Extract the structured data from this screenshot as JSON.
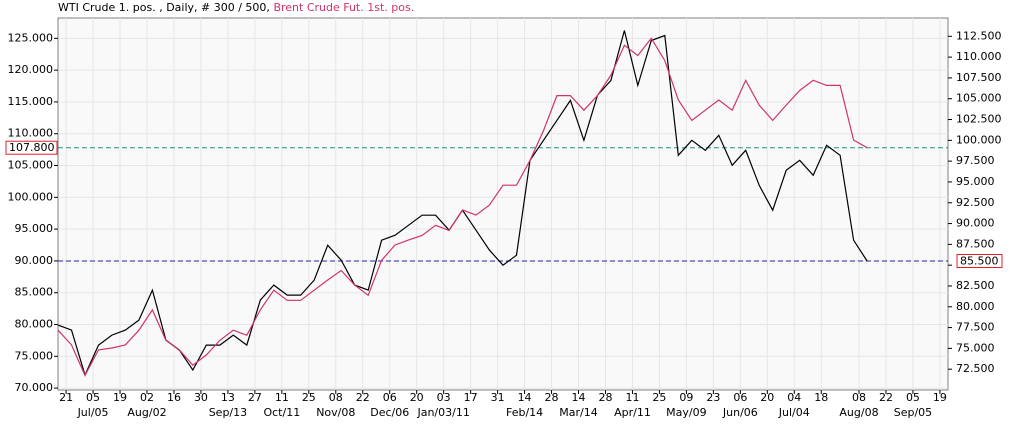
{
  "chart_data": {
    "type": "line",
    "subtitle": ", Daily, # 300 / 500,",
    "x": [
      0,
      5,
      10,
      15,
      20,
      25,
      30,
      35,
      40,
      45,
      50,
      55,
      60,
      65,
      70,
      75,
      80,
      85,
      90,
      95,
      100,
      105,
      110,
      115,
      120,
      125,
      130,
      135,
      140,
      145,
      150,
      155,
      160,
      165,
      170,
      175,
      180,
      185,
      190,
      195,
      200,
      205,
      210,
      215,
      220,
      225,
      230,
      235,
      240,
      245,
      250,
      255,
      260,
      265,
      270,
      275,
      280,
      285,
      290,
      295,
      300
    ],
    "xlim": [
      0,
      330
    ],
    "xticks": [
      {
        "value": 3,
        "label": "21"
      },
      {
        "value": 13,
        "label": "05"
      },
      {
        "value": 23,
        "label": "19"
      },
      {
        "value": 33,
        "label": "02"
      },
      {
        "value": 43,
        "label": "16"
      },
      {
        "value": 53,
        "label": "30"
      },
      {
        "value": 63,
        "label": "13"
      },
      {
        "value": 73,
        "label": "27"
      },
      {
        "value": 83,
        "label": "11"
      },
      {
        "value": 93,
        "label": "25"
      },
      {
        "value": 103,
        "label": "08"
      },
      {
        "value": 113,
        "label": "22"
      },
      {
        "value": 123,
        "label": "06"
      },
      {
        "value": 133,
        "label": "20"
      },
      {
        "value": 143,
        "label": "03"
      },
      {
        "value": 153,
        "label": "17"
      },
      {
        "value": 163,
        "label": "31"
      },
      {
        "value": 173,
        "label": "14"
      },
      {
        "value": 183,
        "label": "28"
      },
      {
        "value": 193,
        "label": "14"
      },
      {
        "value": 203,
        "label": "28"
      },
      {
        "value": 213,
        "label": "11"
      },
      {
        "value": 223,
        "label": "25"
      },
      {
        "value": 233,
        "label": "09"
      },
      {
        "value": 243,
        "label": "23"
      },
      {
        "value": 253,
        "label": "06"
      },
      {
        "value": 263,
        "label": "20"
      },
      {
        "value": 273,
        "label": "04"
      },
      {
        "value": 283,
        "label": "18"
      },
      {
        "value": 297,
        "label": "08"
      },
      {
        "value": 307,
        "label": "22"
      },
      {
        "value": 317,
        "label": "05"
      },
      {
        "value": 327,
        "label": "19"
      }
    ],
    "xticks2": [
      {
        "value": 13,
        "label": "Jul/05"
      },
      {
        "value": 33,
        "label": "Aug/02"
      },
      {
        "value": 63,
        "label": "Sep/13"
      },
      {
        "value": 83,
        "label": "Oct/11"
      },
      {
        "value": 103,
        "label": "Nov/08"
      },
      {
        "value": 123,
        "label": "Dec/06"
      },
      {
        "value": 143,
        "label": "Jan/03/11"
      },
      {
        "value": 173,
        "label": "Feb/14"
      },
      {
        "value": 193,
        "label": "Mar/14"
      },
      {
        "value": 213,
        "label": "Apr/11"
      },
      {
        "value": 233,
        "label": "May/09"
      },
      {
        "value": 253,
        "label": "Jun/06"
      },
      {
        "value": 273,
        "label": "Jul/04"
      },
      {
        "value": 297,
        "label": "Aug/08"
      },
      {
        "value": 317,
        "label": "Sep/05"
      }
    ],
    "ylim": [
      69.7,
      128.2
    ],
    "yticks": [
      {
        "value": 70,
        "label": "70.000"
      },
      {
        "value": 75,
        "label": "75.000"
      },
      {
        "value": 80,
        "label": "80.000"
      },
      {
        "value": 85,
        "label": "85.000"
      },
      {
        "value": 90,
        "label": "90.000"
      },
      {
        "value": 95,
        "label": "95.000"
      },
      {
        "value": 100,
        "label": "100.000"
      },
      {
        "value": 105,
        "label": "105.000"
      },
      {
        "value": 110,
        "label": "110.000"
      },
      {
        "value": 115,
        "label": "115.000"
      },
      {
        "value": 120,
        "label": "120.000"
      },
      {
        "value": 125,
        "label": "125.000"
      }
    ],
    "y2lim": [
      70,
      114.7
    ],
    "y2ticks": [
      {
        "value": 72.5,
        "label": "72.500"
      },
      {
        "value": 75,
        "label": "75.000"
      },
      {
        "value": 77.5,
        "label": "77.500"
      },
      {
        "value": 80,
        "label": "80.000"
      },
      {
        "value": 82.5,
        "label": "82.500"
      },
      {
        "value": 85,
        "label": "85.000"
      },
      {
        "value": 87.5,
        "label": "87.500"
      },
      {
        "value": 90,
        "label": "90.000"
      },
      {
        "value": 92.5,
        "label": "92.500"
      },
      {
        "value": 95,
        "label": "95.000"
      },
      {
        "value": 97.5,
        "label": "97.500"
      },
      {
        "value": 100,
        "label": "100.000"
      },
      {
        "value": 102.5,
        "label": "102.500"
      },
      {
        "value": 105,
        "label": "105.000"
      },
      {
        "value": 107.5,
        "label": "107.500"
      },
      {
        "value": 110,
        "label": "110.000"
      },
      {
        "value": 112.5,
        "label": "112.500"
      }
    ],
    "grid": true,
    "series": [
      {
        "name": "WTI Crude 1. pos.",
        "color": "#000000",
        "axis": "y2",
        "values": [
          77.8,
          77.2,
          71.8,
          75.4,
          76.6,
          77.2,
          78.4,
          82.0,
          76.0,
          74.8,
          72.4,
          75.4,
          75.4,
          76.6,
          75.4,
          80.8,
          82.6,
          81.4,
          81.4,
          83.2,
          87.4,
          85.6,
          82.6,
          82.0,
          88.0,
          88.6,
          89.8,
          91.0,
          91.0,
          89.2,
          91.6,
          89.2,
          86.8,
          85.0,
          86.2,
          97.6,
          100.0,
          102.4,
          104.8,
          100.0,
          105.4,
          107.2,
          113.2,
          106.6,
          112.0,
          112.6,
          98.2,
          100.0,
          98.8,
          100.6,
          97.0,
          98.8,
          94.6,
          91.6,
          96.4,
          97.6,
          95.8,
          99.4,
          98.2,
          88.0,
          85.5
        ]
      },
      {
        "name": "Brent Crude Fut. 1st. pos.",
        "color": "#d0336a",
        "values": [
          79.1,
          76.8,
          72.0,
          76.0,
          76.3,
          76.8,
          79.1,
          82.3,
          77.5,
          76.0,
          73.6,
          75.2,
          77.5,
          79.1,
          78.3,
          82.3,
          85.4,
          83.8,
          83.8,
          85.4,
          87.0,
          88.5,
          86.2,
          84.6,
          90.1,
          92.5,
          93.3,
          94.0,
          95.6,
          94.8,
          98.0,
          97.2,
          98.8,
          101.9,
          101.9,
          105.8,
          110.5,
          116.0,
          116.0,
          113.7,
          116.0,
          119.2,
          123.9,
          122.3,
          125.0,
          121.5,
          115.3,
          112.1,
          113.7,
          115.3,
          113.7,
          118.4,
          114.5,
          112.1,
          114.5,
          116.8,
          118.4,
          117.6,
          117.6,
          109.0,
          107.8
        ]
      }
    ],
    "reference_lines": [
      {
        "value": 107.8,
        "label": "107.800",
        "color": "#2a8a8a"
      },
      {
        "value": 85.5,
        "label": "85.500",
        "color": "#2a2a9a",
        "axis": "y2"
      }
    ]
  }
}
